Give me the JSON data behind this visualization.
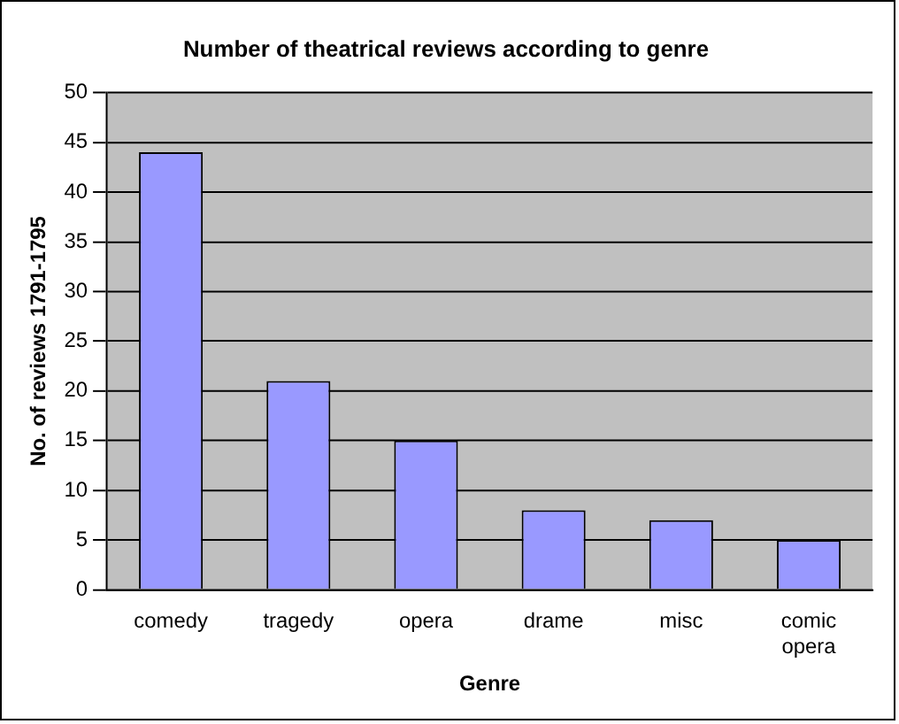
{
  "chart_data": {
    "type": "bar",
    "title": "Number of theatrical reviews according to genre",
    "xlabel": "Genre",
    "ylabel": "No. of reviews 1791-1795",
    "categories": [
      "comedy",
      "tragedy",
      "opera",
      "drame",
      "misc",
      "comic opera"
    ],
    "values": [
      44,
      21,
      15,
      8,
      7,
      5
    ],
    "color": "#9999ff",
    "ylim": [
      0,
      50
    ],
    "yticks": [
      0,
      5,
      10,
      15,
      20,
      25,
      30,
      35,
      40,
      45,
      50
    ],
    "grid": "y",
    "legend": false
  }
}
